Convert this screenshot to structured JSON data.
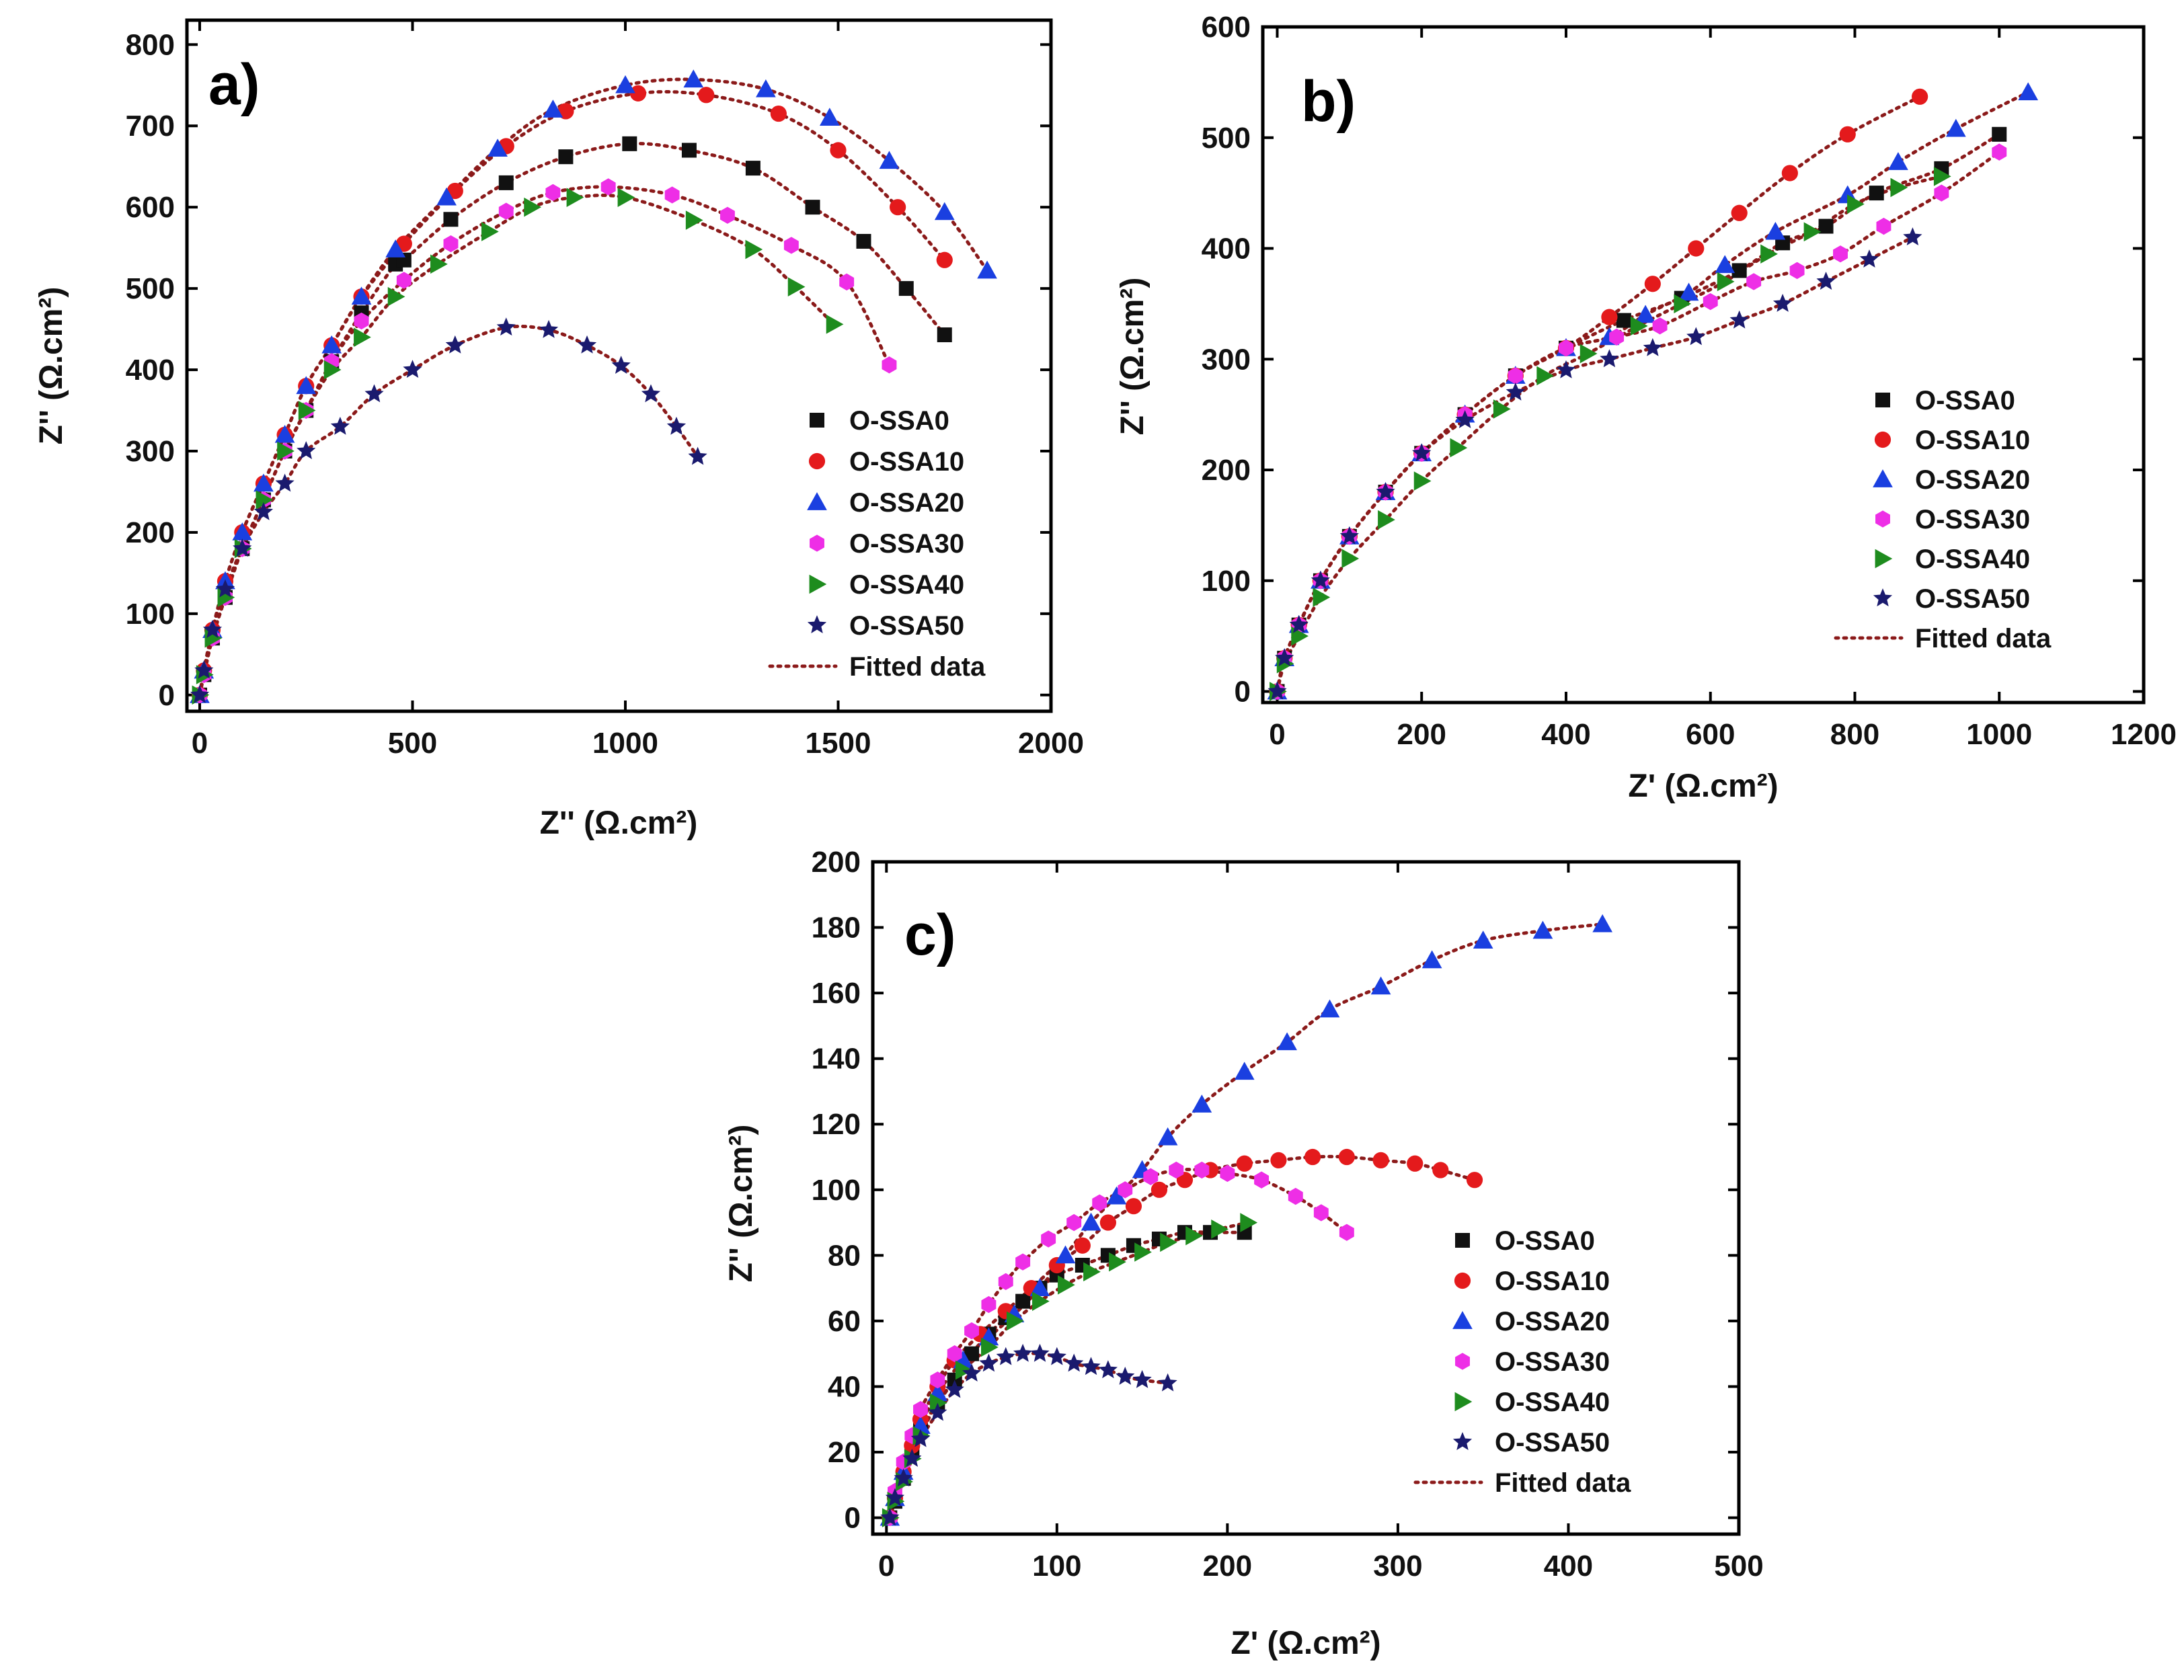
{
  "figure": {
    "series_style": {
      "O-SSA0": {
        "color": "#111111",
        "marker": "square"
      },
      "O-SSA10": {
        "color": "#e41a1c",
        "marker": "circle"
      },
      "O-SSA20": {
        "color": "#1a3fe0",
        "marker": "triangle-up"
      },
      "O-SSA30": {
        "color": "#ee2ee6",
        "marker": "hexagon"
      },
      "O-SSA40": {
        "color": "#1e8c1e",
        "marker": "triangle-right"
      },
      "O-SSA50": {
        "color": "#1a1a6e",
        "marker": "star"
      },
      "Fitted data": {
        "color": "#8b1a1a",
        "marker": "dotted-line"
      }
    }
  },
  "chart_data": [
    {
      "panel": "a)",
      "type": "scatter",
      "xlabel": "Z'' (Ω.cm²)",
      "ylabel": "Z'' (Ω.cm²)",
      "xlim": [
        -30,
        2000
      ],
      "ylim": [
        -20,
        830
      ],
      "xticks": [
        0,
        500,
        1000,
        1500,
        2000
      ],
      "yticks": [
        0,
        100,
        200,
        300,
        400,
        500,
        600,
        700,
        800
      ],
      "legend": [
        "O-SSA0",
        "O-SSA10",
        "O-SSA20",
        "O-SSA30",
        "O-SSA40",
        "O-SSA50",
        "Fitted data"
      ],
      "legend_position": "bottom-right",
      "series": [
        {
          "name": "O-SSA0",
          "x": [
            0,
            10,
            30,
            60,
            100,
            150,
            200,
            250,
            310,
            380,
            460,
            480,
            590,
            720,
            860,
            1010,
            1150,
            1300,
            1440,
            1560,
            1660,
            1750
          ],
          "y": [
            0,
            25,
            70,
            120,
            180,
            240,
            300,
            350,
            410,
            470,
            530,
            535,
            585,
            630,
            662,
            678,
            670,
            648,
            600,
            558,
            500,
            443
          ]
        },
        {
          "name": "O-SSA10",
          "x": [
            0,
            10,
            30,
            60,
            100,
            150,
            200,
            250,
            310,
            380,
            480,
            600,
            720,
            860,
            1030,
            1190,
            1360,
            1500,
            1640,
            1750
          ],
          "y": [
            0,
            30,
            80,
            140,
            200,
            260,
            320,
            380,
            430,
            490,
            555,
            620,
            675,
            718,
            740,
            738,
            715,
            670,
            600,
            535
          ]
        },
        {
          "name": "O-SSA20",
          "x": [
            0,
            10,
            30,
            60,
            100,
            150,
            200,
            250,
            310,
            380,
            460,
            580,
            700,
            830,
            1000,
            1160,
            1330,
            1480,
            1620,
            1750,
            1850
          ],
          "y": [
            0,
            30,
            80,
            140,
            200,
            260,
            320,
            380,
            430,
            490,
            548,
            612,
            672,
            720,
            750,
            757,
            745,
            710,
            657,
            594,
            522
          ]
        },
        {
          "name": "O-SSA30",
          "x": [
            0,
            10,
            30,
            60,
            100,
            150,
            200,
            250,
            310,
            380,
            480,
            590,
            720,
            830,
            960,
            1110,
            1240,
            1390,
            1520,
            1620
          ],
          "y": [
            0,
            25,
            70,
            120,
            180,
            240,
            300,
            350,
            410,
            460,
            510,
            555,
            595,
            618,
            625,
            615,
            590,
            553,
            508,
            406
          ]
        },
        {
          "name": "O-SSA40",
          "x": [
            0,
            10,
            30,
            60,
            100,
            150,
            200,
            250,
            310,
            380,
            460,
            560,
            680,
            780,
            880,
            1000,
            1160,
            1300,
            1400,
            1490
          ],
          "y": [
            0,
            25,
            70,
            120,
            180,
            240,
            300,
            350,
            400,
            440,
            490,
            530,
            570,
            600,
            612,
            612,
            584,
            548,
            502,
            456
          ]
        },
        {
          "name": "O-SSA50",
          "x": [
            0,
            10,
            30,
            60,
            100,
            150,
            200,
            250,
            330,
            410,
            500,
            600,
            720,
            820,
            910,
            990,
            1060,
            1120,
            1170
          ],
          "y": [
            0,
            30,
            80,
            130,
            180,
            225,
            260,
            300,
            330,
            370,
            400,
            430,
            452,
            449,
            430,
            405,
            370,
            330,
            293
          ]
        }
      ]
    },
    {
      "panel": "b)",
      "type": "scatter",
      "xlabel": "Z' (Ω.cm²)",
      "ylabel": "Z'' (Ω.cm²)",
      "xlim": [
        -20,
        1200
      ],
      "ylim": [
        -10,
        600
      ],
      "xticks": [
        0,
        200,
        400,
        600,
        800,
        1000,
        1200
      ],
      "yticks": [
        0,
        100,
        200,
        300,
        400,
        500,
        600
      ],
      "legend": [
        "O-SSA0",
        "O-SSA10",
        "O-SSA20",
        "O-SSA30",
        "O-SSA40",
        "O-SSA50",
        "Fitted data"
      ],
      "legend_position": "right",
      "series": [
        {
          "name": "O-SSA0",
          "x": [
            0,
            10,
            30,
            60,
            100,
            150,
            200,
            260,
            330,
            400,
            480,
            560,
            640,
            700,
            760,
            830,
            920,
            1000
          ],
          "y": [
            0,
            30,
            60,
            100,
            140,
            180,
            215,
            250,
            285,
            310,
            335,
            355,
            380,
            405,
            420,
            450,
            472,
            503
          ]
        },
        {
          "name": "O-SSA10",
          "x": [
            0,
            10,
            30,
            60,
            100,
            150,
            200,
            260,
            330,
            400,
            460,
            520,
            580,
            640,
            710,
            790,
            890
          ],
          "y": [
            0,
            30,
            60,
            100,
            140,
            180,
            215,
            250,
            285,
            310,
            338,
            368,
            400,
            432,
            468,
            503,
            537
          ]
        },
        {
          "name": "O-SSA20",
          "x": [
            0,
            10,
            30,
            60,
            100,
            150,
            200,
            260,
            330,
            400,
            460,
            510,
            570,
            620,
            690,
            790,
            860,
            940,
            1040
          ],
          "y": [
            0,
            30,
            60,
            100,
            140,
            180,
            215,
            250,
            285,
            310,
            320,
            340,
            360,
            385,
            415,
            448,
            478,
            508,
            541
          ]
        },
        {
          "name": "O-SSA30",
          "x": [
            0,
            10,
            30,
            60,
            100,
            150,
            200,
            260,
            330,
            400,
            470,
            530,
            600,
            660,
            720,
            780,
            840,
            920,
            1000
          ],
          "y": [
            0,
            30,
            60,
            100,
            140,
            180,
            215,
            250,
            285,
            310,
            320,
            330,
            352,
            370,
            380,
            395,
            420,
            450,
            487
          ]
        },
        {
          "name": "O-SSA40",
          "x": [
            0,
            10,
            30,
            60,
            100,
            150,
            200,
            250,
            310,
            370,
            430,
            500,
            560,
            620,
            680,
            740,
            800,
            860,
            920
          ],
          "y": [
            0,
            25,
            50,
            85,
            120,
            155,
            190,
            220,
            255,
            285,
            305,
            330,
            350,
            370,
            395,
            415,
            440,
            455,
            465
          ]
        },
        {
          "name": "O-SSA50",
          "x": [
            0,
            10,
            30,
            60,
            100,
            150,
            200,
            260,
            330,
            400,
            460,
            520,
            580,
            640,
            700,
            760,
            820,
            880
          ],
          "y": [
            0,
            30,
            60,
            100,
            140,
            180,
            215,
            245,
            270,
            290,
            300,
            310,
            320,
            335,
            350,
            370,
            390,
            410
          ]
        }
      ]
    },
    {
      "panel": "c)",
      "type": "scatter",
      "xlabel": "Z' (Ω.cm²)",
      "ylabel": "Z'' (Ω.cm²)",
      "xlim": [
        -8,
        500
      ],
      "ylim": [
        -5,
        200
      ],
      "xticks": [
        0,
        100,
        200,
        300,
        400,
        500
      ],
      "yticks": [
        0,
        20,
        40,
        60,
        80,
        100,
        120,
        140,
        160,
        180,
        200
      ],
      "legend": [
        "O-SSA0",
        "O-SSA10",
        "O-SSA20",
        "O-SSA30",
        "O-SSA40",
        "O-SSA50",
        "Fitted data"
      ],
      "legend_position": "bottom-right",
      "series": [
        {
          "name": "O-SSA0",
          "x": [
            2,
            5,
            10,
            15,
            20,
            30,
            40,
            50,
            60,
            70,
            80,
            90,
            100,
            115,
            130,
            145,
            160,
            175,
            190,
            210
          ],
          "y": [
            0,
            5,
            12,
            20,
            27,
            35,
            42,
            50,
            56,
            61,
            66,
            70,
            74,
            77,
            80,
            83,
            85,
            87,
            87,
            87
          ]
        },
        {
          "name": "O-SSA10",
          "x": [
            2,
            5,
            10,
            15,
            20,
            30,
            40,
            55,
            70,
            85,
            100,
            115,
            130,
            145,
            160,
            175,
            190,
            210,
            230,
            250,
            270,
            290,
            310,
            325,
            345
          ],
          "y": [
            0,
            6,
            14,
            22,
            30,
            40,
            48,
            56,
            63,
            70,
            77,
            83,
            90,
            95,
            100,
            103,
            106,
            108,
            109,
            110,
            110,
            109,
            108,
            106,
            103
          ]
        },
        {
          "name": "O-SSA20",
          "x": [
            2,
            5,
            10,
            20,
            30,
            45,
            60,
            75,
            90,
            105,
            120,
            135,
            150,
            165,
            185,
            210,
            235,
            260,
            290,
            320,
            350,
            385,
            420
          ],
          "y": [
            0,
            6,
            14,
            28,
            38,
            48,
            55,
            62,
            70,
            80,
            90,
            98,
            106,
            116,
            126,
            136,
            145,
            155,
            162,
            170,
            176,
            179,
            181
          ]
        },
        {
          "name": "O-SSA30",
          "x": [
            2,
            5,
            10,
            15,
            20,
            30,
            40,
            50,
            60,
            70,
            80,
            95,
            110,
            125,
            140,
            155,
            170,
            185,
            200,
            220,
            240,
            255,
            270
          ],
          "y": [
            0,
            8,
            17,
            25,
            33,
            42,
            50,
            57,
            65,
            72,
            78,
            85,
            90,
            96,
            100,
            104,
            106,
            106,
            105,
            103,
            98,
            93,
            87
          ]
        },
        {
          "name": "O-SSA40",
          "x": [
            2,
            5,
            10,
            15,
            20,
            30,
            45,
            60,
            75,
            90,
            105,
            120,
            135,
            150,
            165,
            180,
            195,
            212
          ],
          "y": [
            0,
            5,
            11,
            18,
            25,
            35,
            45,
            52,
            60,
            66,
            71,
            75,
            78,
            81,
            84,
            86,
            88,
            90
          ]
        },
        {
          "name": "O-SSA50",
          "x": [
            2,
            5,
            10,
            15,
            20,
            30,
            40,
            50,
            60,
            70,
            80,
            90,
            100,
            110,
            120,
            130,
            140,
            150,
            165
          ],
          "y": [
            0,
            6,
            12,
            18,
            24,
            32,
            39,
            44,
            47,
            49,
            50,
            50,
            49,
            47,
            46,
            45,
            43,
            42,
            41
          ]
        }
      ]
    }
  ]
}
